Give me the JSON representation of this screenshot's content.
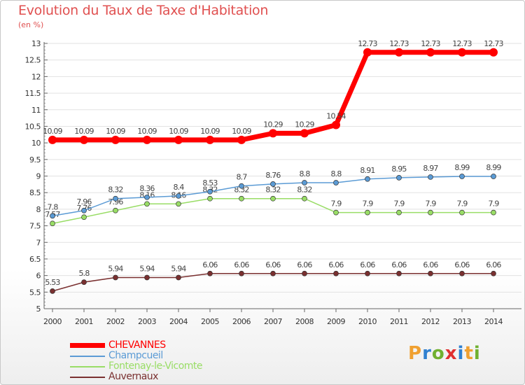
{
  "title": "Evolution du Taux de Taxe d'Habitation",
  "unit_label": "(en %)",
  "logo": {
    "letters": [
      "P",
      "r",
      "o",
      "x",
      "i",
      "t",
      "i"
    ],
    "colors": [
      "#f0a030",
      "#3080d0",
      "#70b030",
      "#e03030",
      "#3080d0",
      "#f0a030",
      "#70b030"
    ]
  },
  "chart_data": {
    "type": "line",
    "x": [
      "2000",
      "2001",
      "2002",
      "2003",
      "2004",
      "2005",
      "2006",
      "2007",
      "2008",
      "2009",
      "2010",
      "2011",
      "2012",
      "2013",
      "2014"
    ],
    "ylim": [
      5,
      13
    ],
    "yticks": [
      "5",
      "5.5",
      "6",
      "6.5",
      "7",
      "7.5",
      "8",
      "8.5",
      "9",
      "9.5",
      "10",
      "10.5",
      "11",
      "11.5",
      "12",
      "12.5",
      "13"
    ],
    "grid": "horizontal",
    "legend_position": "bottom-left",
    "series": [
      {
        "name": "CHEVANNES",
        "color": "#ff0000",
        "values": [
          10.09,
          10.09,
          10.09,
          10.09,
          10.09,
          10.09,
          10.09,
          10.29,
          10.29,
          10.54,
          12.73,
          12.73,
          12.73,
          12.73,
          12.73
        ],
        "labels": [
          "10.09",
          "10.09",
          "10.09",
          "10.09",
          "10.09",
          "10.09",
          "10.09",
          "10.29",
          "10.29",
          "10.54",
          "12.73",
          "12.73",
          "12.73",
          "12.73",
          "12.73"
        ]
      },
      {
        "name": "Champcueil",
        "color": "#5b9bd5",
        "values": [
          7.8,
          7.96,
          8.32,
          8.36,
          8.4,
          8.53,
          8.7,
          8.76,
          8.8,
          8.8,
          8.91,
          8.95,
          8.97,
          8.99,
          8.99
        ],
        "labels": [
          "7.8",
          "7.96",
          "8.32",
          "8.36",
          "8.4",
          "8.53",
          "8.7",
          "8.76",
          "8.8",
          "8.8",
          "8.91",
          "8.95",
          "8.97",
          "8.99",
          "8.99"
        ]
      },
      {
        "name": "Fontenay-le-Vicomte",
        "color": "#99dd66",
        "values": [
          7.57,
          7.76,
          7.96,
          8.16,
          8.16,
          8.32,
          8.32,
          8.32,
          8.32,
          7.9,
          7.9,
          7.9,
          7.9,
          7.9,
          7.9
        ],
        "labels": [
          "7.57",
          "7.76",
          "7.96",
          "8.16",
          "8.16",
          "8.32",
          "8.32",
          "8.32",
          "8.32",
          "7.9",
          "7.9",
          "7.9",
          "7.9",
          "7.9",
          "7.9"
        ]
      },
      {
        "name": "Auvernaux",
        "color": "#7a3030",
        "values": [
          5.53,
          5.8,
          5.94,
          5.94,
          5.94,
          6.06,
          6.06,
          6.06,
          6.06,
          6.06,
          6.06,
          6.06,
          6.06,
          6.06,
          6.06
        ],
        "labels": [
          "5.53",
          "5.8",
          "5.94",
          "5.94",
          "5.94",
          "6.06",
          "6.06",
          "6.06",
          "6.06",
          "6.06",
          "6.06",
          "6.06",
          "6.06",
          "6.06",
          "6.06"
        ]
      }
    ]
  }
}
